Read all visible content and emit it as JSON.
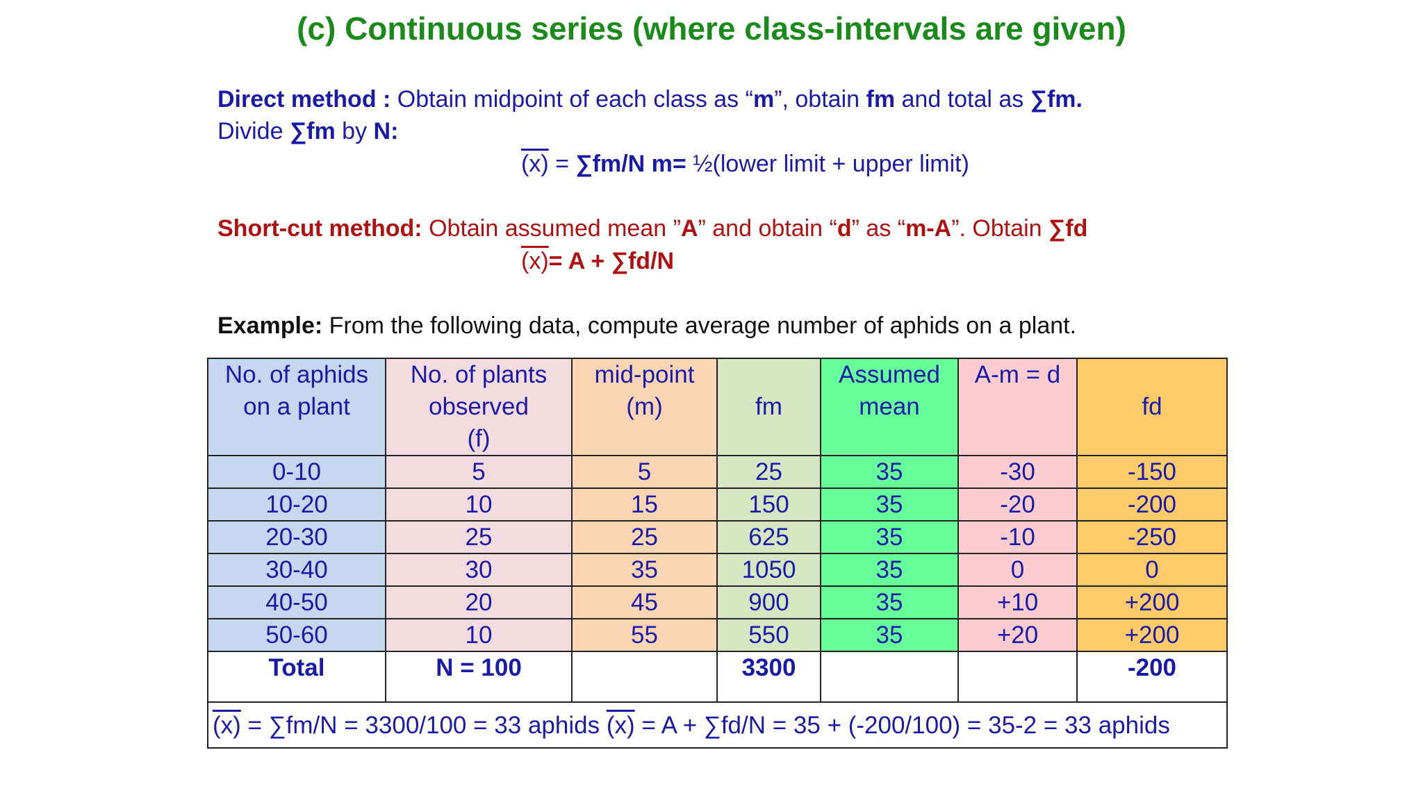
{
  "title": "(c) Continuous series (where class-intervals are given)",
  "direct": {
    "label": "Direct method :",
    "t1": " Obtain midpoint of each  class as “",
    "m": "m",
    "t2": "”, obtain ",
    "fm": "fm",
    "t3": " and total as ",
    "sumfm": "∑fm.",
    "line2a": "Divide ",
    "line2b": "∑fm",
    "line2c": " by ",
    "line2d": "N:",
    "formula_x": "(x)",
    "formula_a": " = ",
    "formula_b": "∑fm/N",
    "formula_c": "   ",
    "formula_d": "m=",
    "formula_e": " ½(lower limit + upper limit)"
  },
  "shortcut": {
    "label": "Short-cut method:",
    "t1": " Obtain assumed mean ”",
    "A": "A",
    "t2": "” and obtain “",
    "d": "d",
    "t3": "” as “",
    "mA": "m-A",
    "t4": "”. Obtain ",
    "sumfd": "∑fd",
    "formula_x": "(x)",
    "formula_b": "= A + ∑fd/N"
  },
  "example": {
    "label": "Example:",
    "text": "  From the following  data, compute average number of aphids on a plant."
  },
  "table": {
    "headers": [
      [
        "No. of aphids",
        "on a plant"
      ],
      [
        "No. of plants",
        "observed",
        "(f)"
      ],
      [
        "mid-point",
        "(m)"
      ],
      [
        "fm"
      ],
      [
        "Assumed",
        "mean"
      ],
      [
        "A-m = d"
      ],
      [
        "fd"
      ]
    ],
    "rows": [
      [
        "0-10",
        "5",
        "5",
        "25",
        "35",
        "-30",
        "-150"
      ],
      [
        "10-20",
        "10",
        "15",
        "150",
        "35",
        "-20",
        "-200"
      ],
      [
        "20-30",
        "25",
        "25",
        "625",
        "35",
        "-10",
        "-250"
      ],
      [
        "30-40",
        "30",
        "35",
        "1050",
        "35",
        "0",
        "0"
      ],
      [
        "40-50",
        "20",
        "45",
        "900",
        "35",
        "+10",
        "+200"
      ],
      [
        "50-60",
        "10",
        "55",
        "550",
        "35",
        "+20",
        "+200"
      ]
    ],
    "total": [
      "Total",
      "N = 100",
      "",
      "3300",
      "",
      "",
      "-200"
    ],
    "footer_a_x": "(x)",
    "footer_a": "  = ∑fm/N = 3300/100 = 33 aphids   ",
    "footer_b_x": "(x)",
    "footer_b": "  = A + ∑fd/N = 35 + (-200/100) = 35-2 = 33 aphids"
  }
}
